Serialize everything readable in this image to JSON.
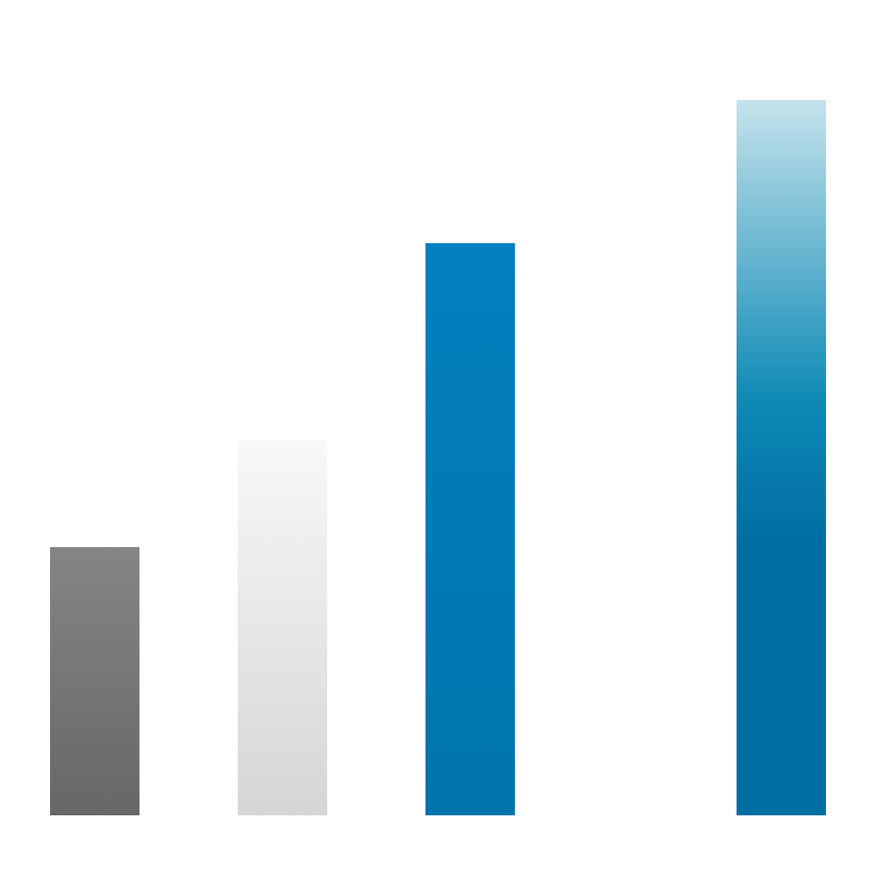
{
  "chart_data": {
    "type": "bar",
    "title": "",
    "xlabel": "",
    "ylabel": "",
    "grid": false,
    "legend": "none",
    "categories": [
      "",
      "",
      "",
      ""
    ],
    "values": [
      30,
      42,
      64,
      80
    ],
    "ylim": [
      0,
      80
    ],
    "bar_styles": [
      {
        "gradient": [
          "#858585",
          "#676767"
        ]
      },
      {
        "gradient": [
          "#f8f8f8",
          "#d5d5d5"
        ]
      },
      {
        "gradient": [
          "#0280bf",
          "#0074ab"
        ]
      },
      {
        "gradient": [
          "#c5e3ec",
          "#0e8ab5",
          "#006ea3"
        ]
      }
    ]
  }
}
